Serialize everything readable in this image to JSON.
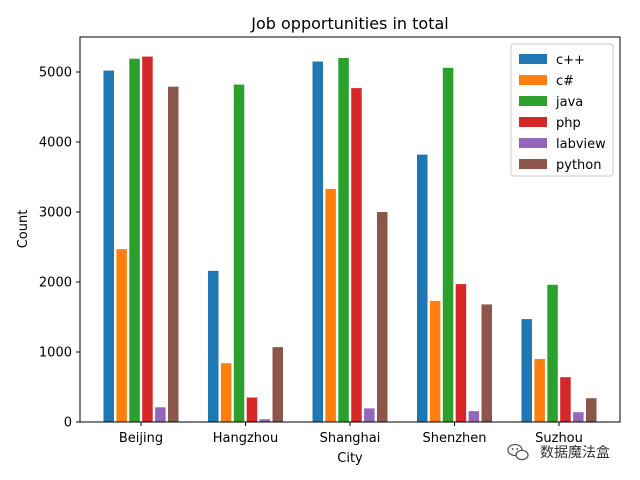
{
  "chart_data": {
    "type": "bar",
    "title": "Job opportunities in total",
    "xlabel": "City",
    "ylabel": "Count",
    "ylim": [
      0,
      5500
    ],
    "yticks": [
      0,
      1000,
      2000,
      3000,
      4000,
      5000
    ],
    "categories": [
      "Beijing",
      "Hangzhou",
      "Shanghai",
      "Shenzhen",
      "Suzhou"
    ],
    "series": [
      {
        "name": "c++",
        "color": "#1f77b4",
        "values": [
          5020,
          2160,
          5150,
          3820,
          1470
        ]
      },
      {
        "name": "c#",
        "color": "#ff7f0e",
        "values": [
          2470,
          840,
          3330,
          1730,
          900
        ]
      },
      {
        "name": "java",
        "color": "#2ca02c",
        "values": [
          5190,
          4820,
          5200,
          5060,
          1960
        ]
      },
      {
        "name": "php",
        "color": "#d62728",
        "values": [
          5220,
          350,
          4770,
          1970,
          640
        ]
      },
      {
        "name": "labview",
        "color": "#9467bd",
        "values": [
          210,
          40,
          195,
          155,
          140
        ]
      },
      {
        "name": "python",
        "color": "#8c564b",
        "values": [
          4790,
          1070,
          3000,
          1680,
          340
        ]
      }
    ],
    "legend_position": "top-right",
    "grid": false
  },
  "watermark": {
    "text": "数据魔法盒",
    "icon": "wechat-icon"
  }
}
